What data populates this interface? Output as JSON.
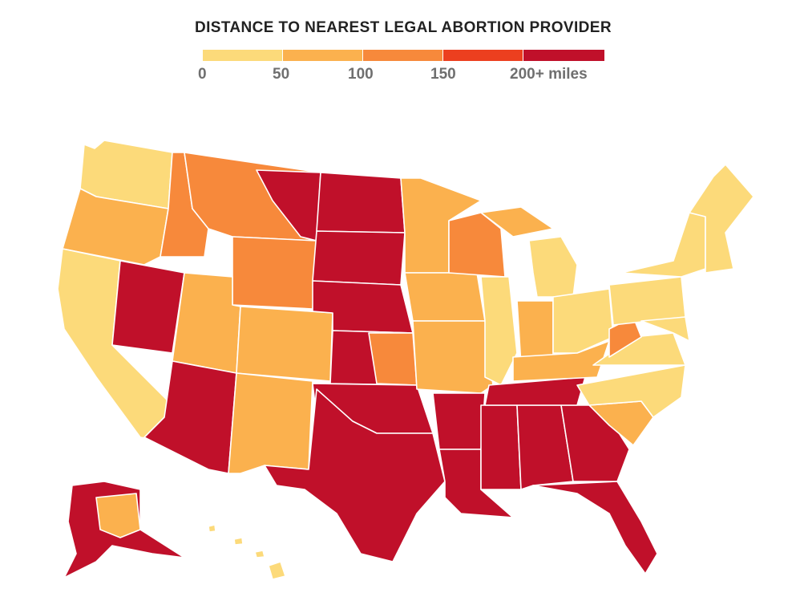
{
  "title": "DISTANCE TO NEAREST LEGAL ABORTION PROVIDER",
  "legend": {
    "labels": [
      "0",
      "50",
      "100",
      "150",
      "200+ miles"
    ],
    "colors": [
      "#fcda7a",
      "#fbb14e",
      "#f7893b",
      "#ec3f1f",
      "#c0102a"
    ]
  },
  "map": {
    "region": "United States",
    "distance_classes": {
      "very_near": "#fcda7a",
      "near": "#fbb14e",
      "moderate": "#f7893b",
      "far": "#ec3f1f",
      "farthest": "#c0102a"
    }
  }
}
